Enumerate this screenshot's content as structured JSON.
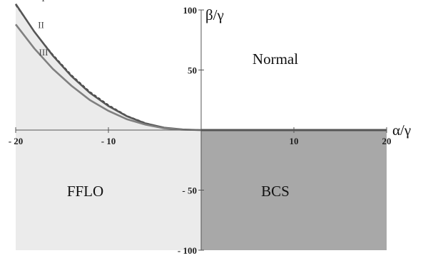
{
  "chart_data": {
    "type": "line",
    "title": "",
    "xlabel": "α/γ",
    "ylabel": "β/γ",
    "xlim": [
      -20,
      20
    ],
    "ylim": [
      -100,
      100
    ],
    "x_ticks": [
      {
        "value": -20,
        "label": "- 20"
      },
      {
        "value": -10,
        "label": "- 10"
      },
      {
        "value": 10,
        "label": "10"
      },
      {
        "value": 20,
        "label": "20"
      }
    ],
    "y_ticks": [
      {
        "value": 100,
        "label": "100"
      },
      {
        "value": 50,
        "label": "50"
      },
      {
        "value": -50,
        "label": "- 50"
      },
      {
        "value": -100,
        "label": "- 100"
      }
    ],
    "regions": [
      {
        "label": "Normal",
        "x": 8,
        "y": 55,
        "color": "#ffffff"
      },
      {
        "label": "FFLO",
        "x": -12.5,
        "y": -55,
        "color": "#ebebeb"
      },
      {
        "label": "BCS",
        "x": 8,
        "y": -55,
        "color": "#a8a8a8"
      }
    ],
    "series": [
      {
        "name": "I",
        "label_at": [
          -17.2,
          107
        ],
        "color": "#222222",
        "dash": true,
        "x": [
          -20,
          -18,
          -16,
          -14,
          -12,
          -10,
          -8,
          -6,
          -4,
          -2,
          0
        ],
        "y": [
          104,
          82,
          63,
          46,
          32,
          21,
          12,
          6,
          2,
          0.5,
          0
        ]
      },
      {
        "name": "II",
        "label_at": [
          -17.6,
          85
        ],
        "color": "#555555",
        "dash": false,
        "x": [
          -20,
          -18,
          -16,
          -14,
          -12,
          -10,
          -8,
          -6,
          -4,
          -2,
          0
        ],
        "y": [
          105,
          82,
          62,
          45,
          31,
          20,
          11.5,
          5.5,
          2,
          0.5,
          0
        ]
      },
      {
        "name": "III",
        "label_at": [
          -17.5,
          62
        ],
        "color": "#808080",
        "dash": false,
        "x": [
          -20,
          -18,
          -16,
          -14,
          -12,
          -10,
          -8,
          -6,
          -4,
          -2,
          0
        ],
        "y": [
          88,
          68,
          51,
          37,
          25,
          16,
          9,
          4.5,
          1.5,
          0.3,
          0
        ]
      }
    ],
    "phase_boundary": {
      "x": [
        0,
        20
      ],
      "y": [
        0,
        0
      ],
      "color": "#555555"
    },
    "grid": false,
    "legend": "none"
  }
}
